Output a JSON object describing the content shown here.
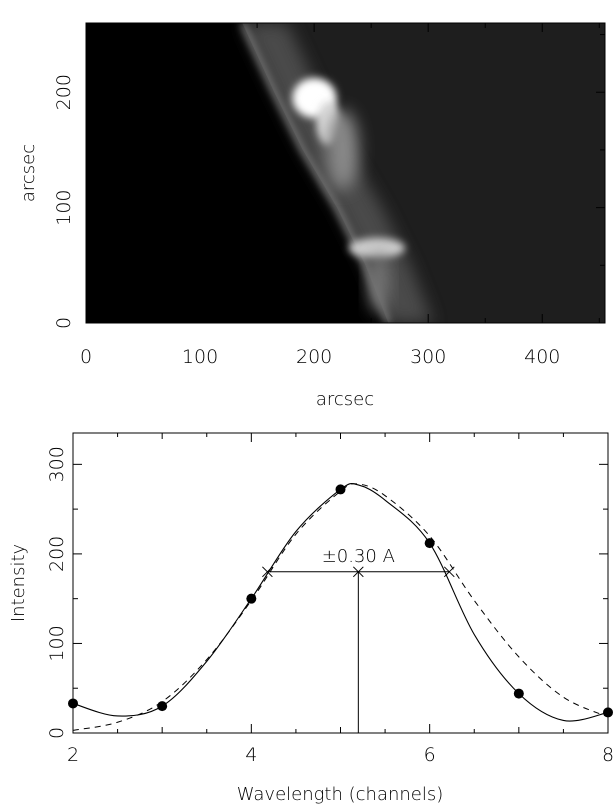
{
  "chart_data": [
    {
      "type": "heatmap",
      "title": "",
      "xlabel": "arcsec",
      "ylabel": "arcsec",
      "xlim": [
        0,
        455
      ],
      "ylim": [
        0,
        260
      ],
      "xticks": [
        0,
        100,
        200,
        300,
        400
      ],
      "yticks": [
        0,
        100,
        200
      ],
      "colormap": "grayscale",
      "features": {
        "limb_edge": [
          [
            265,
            0
          ],
          [
            245,
            50
          ],
          [
            220,
            100
          ],
          [
            190,
            150
          ],
          [
            165,
            200
          ],
          [
            137,
            260
          ]
        ],
        "bright_blobs": [
          {
            "x": 195,
            "y": 195,
            "intensity": 1.0
          },
          {
            "x": 225,
            "y": 150,
            "intensity": 0.55
          },
          {
            "x": 255,
            "y": 65,
            "intensity": 0.7
          }
        ]
      }
    },
    {
      "type": "line",
      "title": "",
      "xlabel": "Wavelength (channels)",
      "ylabel": "Intensity",
      "xlim": [
        2,
        8
      ],
      "ylim": [
        0,
        335
      ],
      "xticks": [
        2,
        4,
        6,
        8
      ],
      "yticks": [
        0,
        100,
        200,
        300
      ],
      "points": {
        "x": [
          2,
          3,
          4,
          5,
          6,
          7,
          8
        ],
        "y": [
          33,
          30,
          150,
          272,
          212,
          44,
          23
        ]
      },
      "solid_fit": {
        "x": [
          2.0,
          2.5,
          3.0,
          3.5,
          4.0,
          4.5,
          5.0,
          5.2,
          5.5,
          6.0,
          6.5,
          7.0,
          7.5,
          8.0
        ],
        "y": [
          33,
          19,
          30,
          80,
          150,
          225,
          272,
          277,
          260,
          212,
          110,
          44,
          14,
          23
        ]
      },
      "dashed_fit": {
        "x": [
          2.0,
          2.5,
          3.0,
          3.5,
          4.0,
          4.5,
          5.0,
          5.2,
          5.5,
          6.0,
          6.5,
          7.0,
          7.5,
          8.0
        ],
        "y": [
          3,
          12,
          35,
          82,
          148,
          222,
          270,
          278,
          265,
          220,
          148,
          85,
          40,
          18
        ]
      },
      "center": {
        "x": 5.2,
        "y": 180
      },
      "width_bar": {
        "x1": 4.18,
        "x2": 6.22,
        "y": 180
      },
      "annotation": "±0.30 A"
    }
  ]
}
